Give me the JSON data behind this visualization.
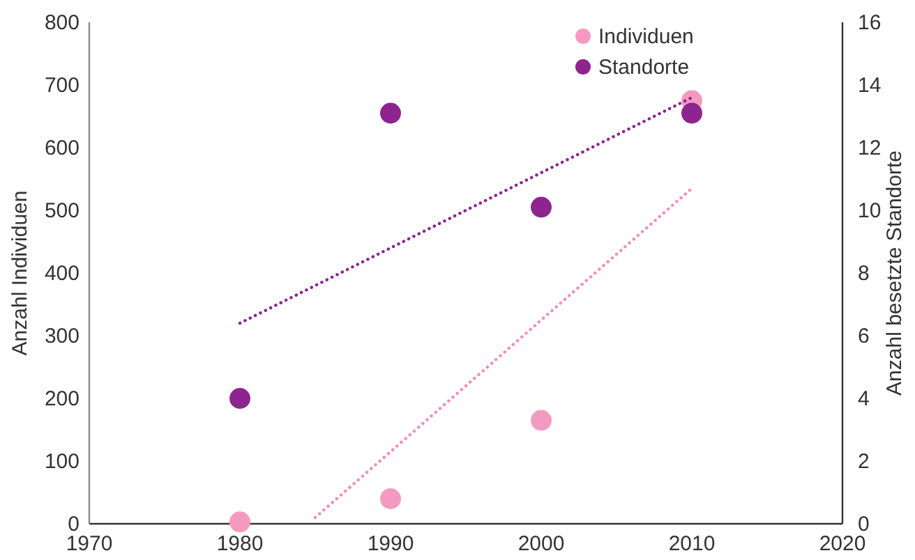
{
  "chart_data": {
    "type": "scatter",
    "ylabel": "Anzahl Individuen",
    "y2label": "Anzahl besetzte Standorte",
    "x": [
      1980,
      1990,
      2000,
      2010
    ],
    "xlim": [
      1970,
      2020
    ],
    "xticks": [
      1970,
      1980,
      1990,
      2000,
      2010,
      2020
    ],
    "ylim": [
      0,
      800
    ],
    "yticks": [
      0,
      100,
      200,
      300,
      400,
      500,
      600,
      700,
      800
    ],
    "y2lim": [
      0,
      16
    ],
    "y2ticks": [
      0,
      2,
      4,
      6,
      8,
      10,
      12,
      14,
      16
    ],
    "series": [
      {
        "name": "Individuen",
        "color": "#f49ac1",
        "values": [
          3,
          40,
          165,
          675
        ]
      },
      {
        "name": "Standorte",
        "color": "#8e2490",
        "values": [
          4,
          13.1,
          10.1,
          13.1
        ],
        "axis": "y2"
      },
      {
        "type": "line",
        "color": "#f48cbc",
        "x": [
          1985,
          2010
        ],
        "values": [
          10,
          535
        ],
        "line_style": "dotted",
        "marker": "none"
      },
      {
        "type": "line",
        "color": "#8e2490",
        "x": [
          1980,
          2010
        ],
        "values": [
          6.4,
          13.6
        ],
        "axis": "y2",
        "line_style": "dotted",
        "marker": "none"
      }
    ],
    "marker": "circle",
    "legend": "top right",
    "grid": false
  }
}
